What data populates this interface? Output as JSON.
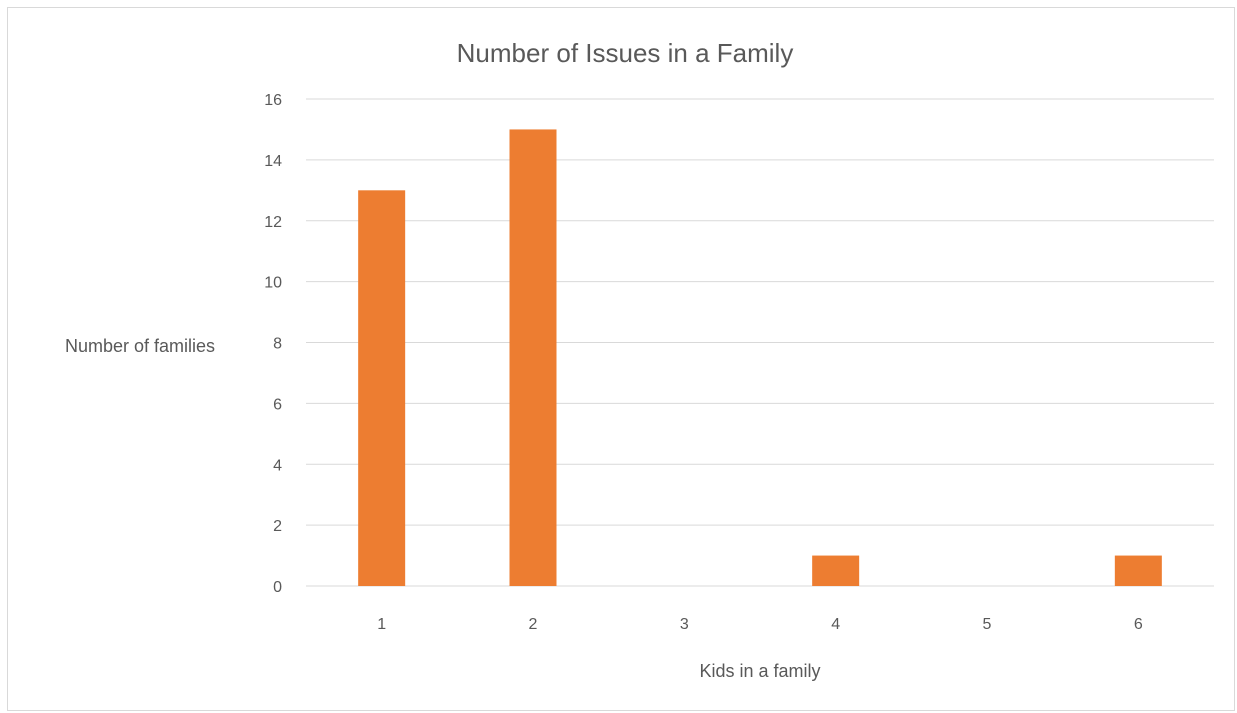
{
  "chart_data": {
    "type": "bar",
    "title": "Number of Issues in a Family",
    "xlabel": "Kids in a family",
    "ylabel": "Number of families",
    "categories": [
      "1",
      "2",
      "3",
      "4",
      "5",
      "6"
    ],
    "values": [
      13,
      15,
      0,
      1,
      0,
      1
    ],
    "ylim": [
      0,
      16
    ],
    "yticks": [
      0,
      2,
      4,
      6,
      8,
      10,
      12,
      14,
      16
    ],
    "grid": true,
    "legend": "none",
    "bar_color": "#ED7D31",
    "grid_color": "#D9D9D9",
    "text_color": "#595959"
  }
}
